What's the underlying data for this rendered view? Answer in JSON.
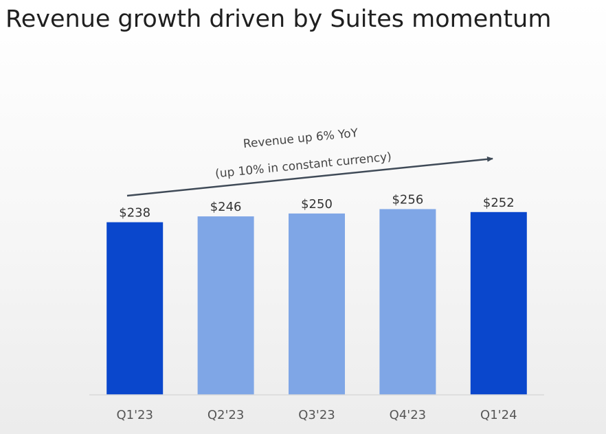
{
  "page": {
    "title": "Revenue growth driven by Suites momentum"
  },
  "chart_data": {
    "type": "bar",
    "categories": [
      "Q1'23",
      "Q2'23",
      "Q3'23",
      "Q4'23",
      "Q1'24"
    ],
    "values": [
      238,
      246,
      250,
      256,
      252
    ],
    "value_labels": [
      "$238",
      "$246",
      "$250",
      "$256",
      "$252"
    ],
    "highlighted": [
      true,
      false,
      false,
      false,
      true
    ],
    "colors": {
      "highlight": "#0a47cc",
      "normal": "#7fa6e6",
      "arrow": "#3f4a57",
      "baseline": "#d9d9d9"
    },
    "ylim": [
      0,
      260
    ],
    "grid": false,
    "legend": "none",
    "annotation": {
      "line1": "Revenue up 6% YoY",
      "line2": "(up 10% in constant currency)"
    }
  }
}
